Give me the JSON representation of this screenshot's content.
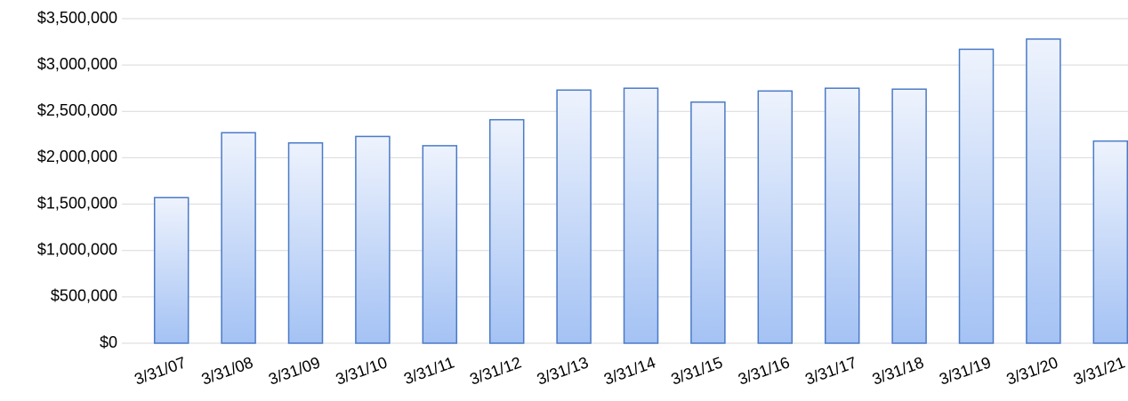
{
  "chart_data": {
    "type": "bar",
    "categories": [
      "3/31/07",
      "3/31/08",
      "3/31/09",
      "3/31/10",
      "3/31/11",
      "3/31/12",
      "3/31/13",
      "3/31/14",
      "3/31/15",
      "3/31/16",
      "3/31/17",
      "3/31/18",
      "3/31/19",
      "3/31/20",
      "3/31/21"
    ],
    "values": [
      1570000,
      2270000,
      2160000,
      2230000,
      2130000,
      2410000,
      2730000,
      2750000,
      2600000,
      2720000,
      2750000,
      2740000,
      3170000,
      3280000,
      2180000
    ],
    "color": "#a4c2f4",
    "ylim": [
      0,
      3500000
    ],
    "yticks": [
      {
        "value": 0,
        "label": "$0"
      },
      {
        "value": 500000,
        "label": "$500,000"
      },
      {
        "value": 1000000,
        "label": "$1,000,000"
      },
      {
        "value": 1500000,
        "label": "$1,500,000"
      },
      {
        "value": 2000000,
        "label": "$2,000,000"
      },
      {
        "value": 2500000,
        "label": "$2,500,000"
      },
      {
        "value": 3000000,
        "label": "$3,000,000"
      },
      {
        "value": 3500000,
        "label": "$3,500,000"
      }
    ],
    "grid": true
  }
}
